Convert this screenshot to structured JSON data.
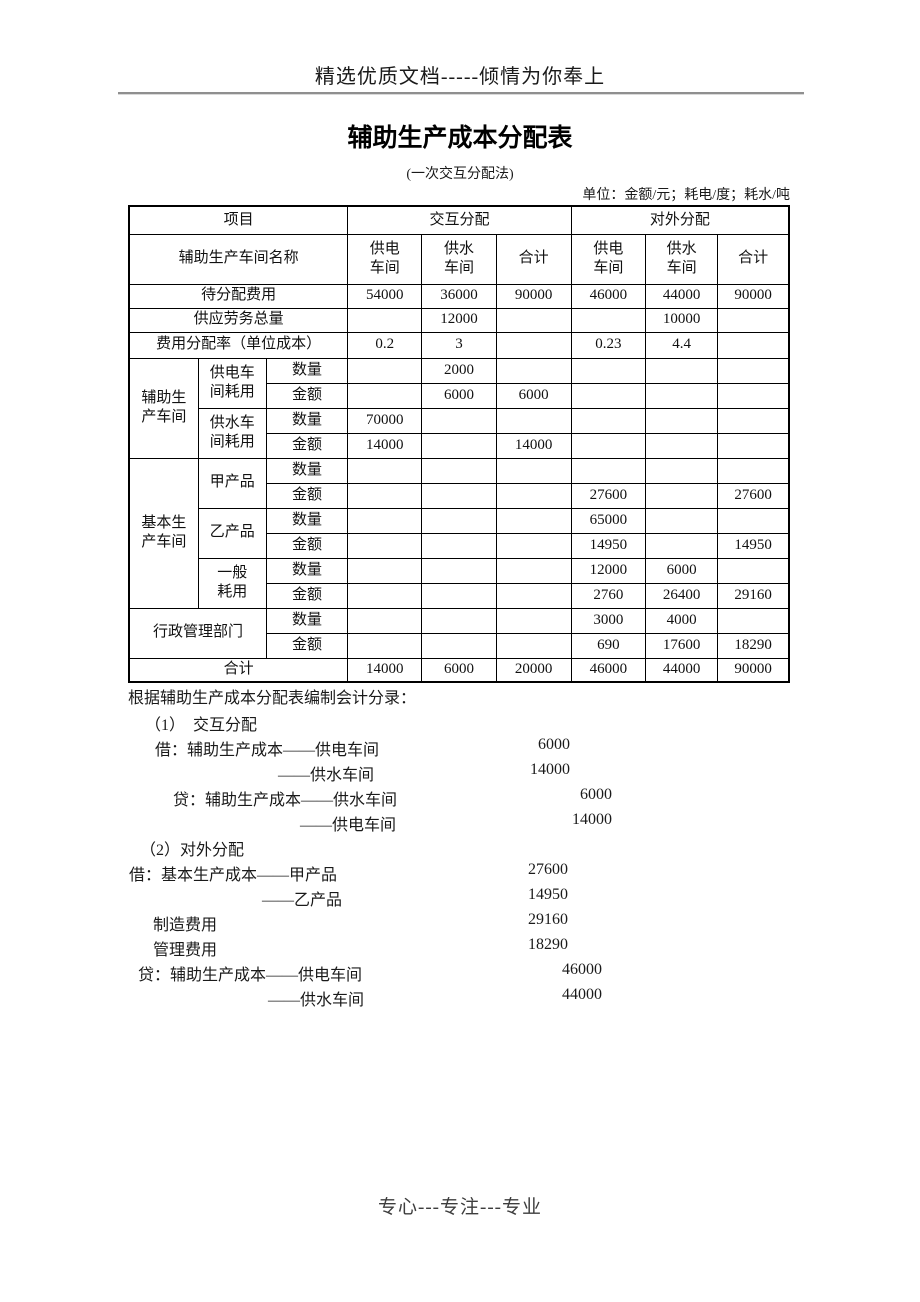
{
  "colors": {
    "text": "#111111",
    "table_border": "#000000",
    "rule_gray": "#8f8f8f",
    "footer_gray": "#3d3d3d"
  },
  "page": {
    "promo_header": "精选优质文档-----倾情为你奉上",
    "title": "辅助生产成本分配表",
    "subtitle": "(一次交互分配法)",
    "unit_note": "单位：金额/元；耗电/度；耗水/吨",
    "footer": "专心---专注---专业"
  },
  "table": {
    "rows": [
      [
        {
          "t": "项目",
          "cs": 3
        },
        {
          "t": "交互分配",
          "cs": 3
        },
        {
          "t": "对外分配",
          "cs": 3
        }
      ],
      [
        {
          "t": "辅助生产车间名称",
          "cs": 3
        },
        {
          "t": "供电\n车间"
        },
        {
          "t": "供水\n车间"
        },
        {
          "t": "合计"
        },
        {
          "t": "供电\n车间"
        },
        {
          "t": "供水\n车间"
        },
        {
          "t": "合计"
        }
      ],
      [
        {
          "t": "待分配费用",
          "cs": 3
        },
        {
          "t": "54000"
        },
        {
          "t": "36000"
        },
        {
          "t": "90000"
        },
        {
          "t": "46000"
        },
        {
          "t": "44000"
        },
        {
          "t": "90000"
        }
      ],
      [
        {
          "t": "供应劳务总量",
          "cs": 3
        },
        {
          "t": ""
        },
        {
          "t": "12000"
        },
        {
          "t": ""
        },
        {
          "t": ""
        },
        {
          "t": "10000"
        },
        {
          "t": ""
        }
      ],
      [
        {
          "t": "费用分配率（单位成本）",
          "cs": 3
        },
        {
          "t": "0.2"
        },
        {
          "t": "3"
        },
        {
          "t": ""
        },
        {
          "t": "0.23"
        },
        {
          "t": "4.4"
        },
        {
          "t": ""
        }
      ],
      [
        {
          "t": "辅助生\n产车间",
          "rs": 4
        },
        {
          "t": "供电车\n间耗用",
          "rs": 2
        },
        {
          "t": "数量"
        },
        {
          "t": ""
        },
        {
          "t": "2000"
        },
        {
          "t": ""
        },
        {
          "t": ""
        },
        {
          "t": ""
        },
        {
          "t": ""
        }
      ],
      [
        {
          "t": "金额"
        },
        {
          "t": ""
        },
        {
          "t": "6000"
        },
        {
          "t": "6000"
        },
        {
          "t": ""
        },
        {
          "t": ""
        },
        {
          "t": ""
        }
      ],
      [
        {
          "t": "供水车\n间耗用",
          "rs": 2
        },
        {
          "t": "数量"
        },
        {
          "t": "70000"
        },
        {
          "t": ""
        },
        {
          "t": ""
        },
        {
          "t": ""
        },
        {
          "t": ""
        },
        {
          "t": ""
        }
      ],
      [
        {
          "t": "金额"
        },
        {
          "t": "14000"
        },
        {
          "t": ""
        },
        {
          "t": "14000"
        },
        {
          "t": ""
        },
        {
          "t": ""
        },
        {
          "t": ""
        }
      ],
      [
        {
          "t": "基本生\n产车间",
          "rs": 6
        },
        {
          "t": "甲产品",
          "rs": 2
        },
        {
          "t": "数量"
        },
        {
          "t": ""
        },
        {
          "t": ""
        },
        {
          "t": ""
        },
        {
          "t": ""
        },
        {
          "t": ""
        },
        {
          "t": ""
        }
      ],
      [
        {
          "t": "金额"
        },
        {
          "t": ""
        },
        {
          "t": ""
        },
        {
          "t": ""
        },
        {
          "t": "27600"
        },
        {
          "t": ""
        },
        {
          "t": "27600"
        }
      ],
      [
        {
          "t": "乙产品",
          "rs": 2
        },
        {
          "t": "数量"
        },
        {
          "t": ""
        },
        {
          "t": ""
        },
        {
          "t": ""
        },
        {
          "t": "65000"
        },
        {
          "t": ""
        },
        {
          "t": ""
        }
      ],
      [
        {
          "t": "金额"
        },
        {
          "t": ""
        },
        {
          "t": ""
        },
        {
          "t": ""
        },
        {
          "t": "14950"
        },
        {
          "t": ""
        },
        {
          "t": "14950"
        }
      ],
      [
        {
          "t": "一般\n耗用",
          "rs": 2
        },
        {
          "t": "数量"
        },
        {
          "t": ""
        },
        {
          "t": ""
        },
        {
          "t": ""
        },
        {
          "t": "12000"
        },
        {
          "t": "6000"
        },
        {
          "t": ""
        }
      ],
      [
        {
          "t": "金额"
        },
        {
          "t": ""
        },
        {
          "t": ""
        },
        {
          "t": ""
        },
        {
          "t": "2760"
        },
        {
          "t": "26400"
        },
        {
          "t": "29160"
        }
      ],
      [
        {
          "t": "行政管理部门",
          "cs": 2,
          "rs": 2
        },
        {
          "t": "数量"
        },
        {
          "t": ""
        },
        {
          "t": ""
        },
        {
          "t": ""
        },
        {
          "t": "3000"
        },
        {
          "t": "4000"
        },
        {
          "t": ""
        }
      ],
      [
        {
          "t": "金额"
        },
        {
          "t": ""
        },
        {
          "t": ""
        },
        {
          "t": ""
        },
        {
          "t": "690"
        },
        {
          "t": "17600"
        },
        {
          "t": "18290"
        }
      ],
      [
        {
          "t": "合计",
          "cs": 3
        },
        {
          "t": "14000"
        },
        {
          "t": "6000"
        },
        {
          "t": "20000"
        },
        {
          "t": "46000"
        },
        {
          "t": "44000"
        },
        {
          "t": "90000"
        }
      ]
    ]
  },
  "entries": {
    "intro": "根据辅助生产成本分配表编制会计分录：",
    "lines": [
      {
        "text": "（1）　交互分配",
        "amount": ""
      },
      {
        "text": "借：辅助生产成本——供电车间",
        "amount": "6000"
      },
      {
        "text": "——供水车间",
        "amount": "14000"
      },
      {
        "text": "贷：辅助生产成本——供水车间",
        "amount": "6000"
      },
      {
        "text": "——供电车间",
        "amount": "14000"
      },
      {
        "text": "（2）对外分配",
        "amount": ""
      },
      {
        "text": "借：基本生产成本——甲产品",
        "amount": "27600"
      },
      {
        "text": "——乙产品",
        "amount": "14950"
      },
      {
        "text": "制造费用",
        "amount": "29160"
      },
      {
        "text": "管理费用",
        "amount": "18290"
      },
      {
        "text": "贷：辅助生产成本——供电车间",
        "amount": "46000"
      },
      {
        "text": "——供水车间",
        "amount": "44000"
      }
    ]
  }
}
